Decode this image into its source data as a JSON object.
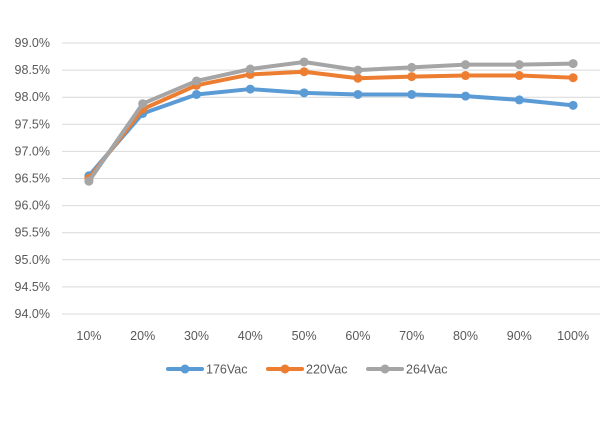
{
  "chart_data": {
    "type": "line",
    "title": "",
    "xlabel": "",
    "ylabel": "",
    "categories": [
      "10%",
      "20%",
      "30%",
      "40%",
      "50%",
      "60%",
      "70%",
      "80%",
      "90%",
      "100%"
    ],
    "ylim": [
      94.0,
      99.0
    ],
    "yticks": [
      "94.0%",
      "94.5%",
      "95.0%",
      "95.5%",
      "96.0%",
      "96.5%",
      "97.0%",
      "97.5%",
      "98.0%",
      "98.5%",
      "99.0%"
    ],
    "ytick_values": [
      94.0,
      94.5,
      95.0,
      95.5,
      96.0,
      96.5,
      97.0,
      97.5,
      98.0,
      98.5,
      99.0
    ],
    "grid": true,
    "legend_position": "bottom",
    "series": [
      {
        "name": "176Vac",
        "color": "#5B9BD5",
        "values": [
          96.55,
          97.7,
          98.05,
          98.15,
          98.08,
          98.05,
          98.05,
          98.02,
          97.95,
          97.85
        ]
      },
      {
        "name": "220Vac",
        "color": "#ED7D31",
        "values": [
          96.5,
          97.78,
          98.22,
          98.42,
          98.47,
          98.35,
          98.38,
          98.4,
          98.4,
          98.36
        ]
      },
      {
        "name": "264Vac",
        "color": "#A5A5A5",
        "values": [
          96.45,
          97.88,
          98.3,
          98.52,
          98.65,
          98.5,
          98.55,
          98.6,
          98.6,
          98.62
        ]
      }
    ]
  }
}
